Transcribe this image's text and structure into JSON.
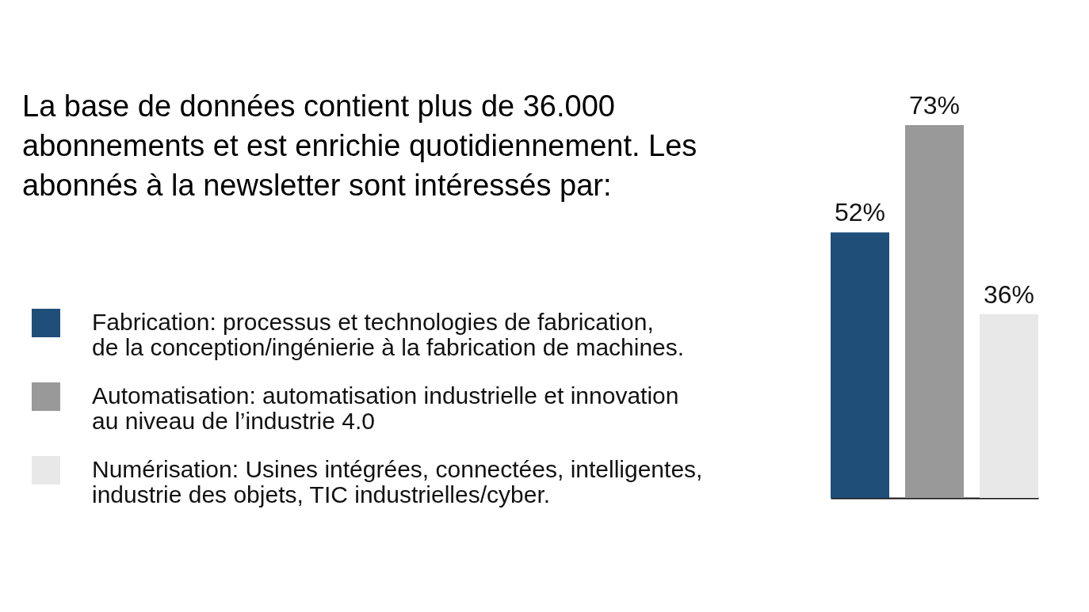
{
  "chart_data": {
    "type": "bar",
    "title": "La base de données contient plus de 36.000 abonnements et est enrichie quotidiennement. Les abonnés à la newsletter sont intéressés par:",
    "categories": [
      null
    ],
    "series": [
      {
        "name": "Fabrication: processus et technologies de fabrication,\nde la conception/ingénierie à la fabrication de machines.",
        "color": "#1f4e79",
        "values": [
          52
        ],
        "value_labels": [
          "52%"
        ]
      },
      {
        "name": "Automatisation: automatisation industrielle et innovation\nau niveau de l’industrie 4.0",
        "color": "#999999",
        "values": [
          73
        ],
        "value_labels": [
          "73%"
        ]
      },
      {
        "name": "Numérisation: Usines intégrées, connectées, intelligentes,\nindustrie des objets, TIC industrielles/cyber.",
        "color": "#e8e8e8",
        "values": [
          36
        ],
        "value_labels": [
          "36%"
        ]
      }
    ],
    "legend": "left",
    "tick_labels": false
  }
}
